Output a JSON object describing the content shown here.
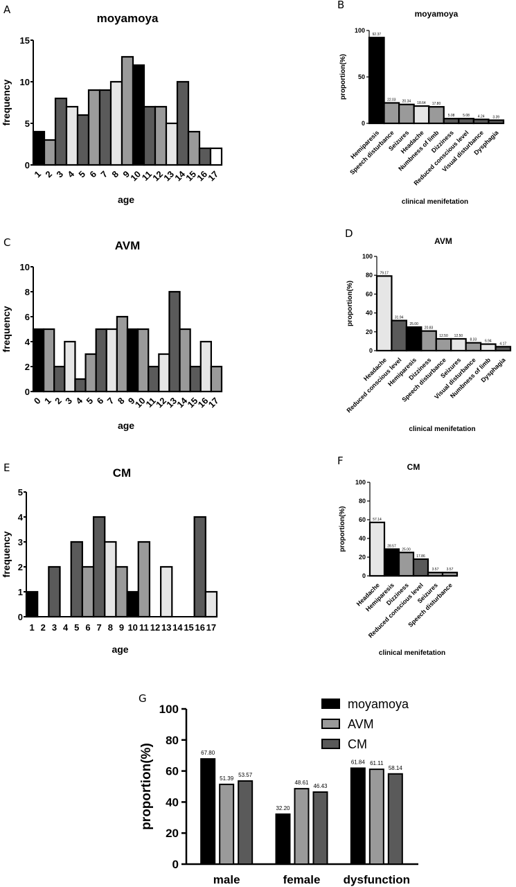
{
  "colors": {
    "black": "#000000",
    "dark_gray": "#5a5a5a",
    "mid_gray": "#9a9a9a",
    "light_gray": "#e6e6e6",
    "white": "#ffffff"
  },
  "panel_letters": [
    "A",
    "B",
    "C",
    "D",
    "E",
    "F",
    "G"
  ],
  "chart_data": [
    {
      "id": "A",
      "type": "bar",
      "title": "moyamoya",
      "xlabel": "age",
      "ylabel": "frequency",
      "ylim": [
        0,
        15
      ],
      "yticks": [
        0,
        5,
        10,
        15
      ],
      "categories": [
        "1",
        "2",
        "3",
        "4",
        "5",
        "6",
        "7",
        "8",
        "9",
        "10",
        "11",
        "12",
        "13",
        "14",
        "15",
        "16",
        "17"
      ],
      "values": [
        4,
        3,
        8,
        7,
        6,
        9,
        9,
        10,
        13,
        12,
        7,
        7,
        5,
        10,
        4,
        2,
        2
      ],
      "fills": [
        "black",
        "mid_gray",
        "dark_gray",
        "light_gray",
        "dark_gray",
        "mid_gray",
        "dark_gray",
        "light_gray",
        "mid_gray",
        "black",
        "dark_gray",
        "mid_gray",
        "light_gray",
        "dark_gray",
        "mid_gray",
        "dark_gray",
        "white"
      ]
    },
    {
      "id": "B",
      "type": "bar",
      "title": "moyamoya",
      "xlabel": "clinical menifetation",
      "ylabel": "proportion(%)",
      "ylim": [
        0,
        100
      ],
      "yticks": [
        0,
        50,
        100
      ],
      "categories": [
        "Hemiparesis",
        "Speech disturbance",
        "Seizures",
        "Headache",
        "Numbness of limb",
        "Dizziness",
        "Reduced conscious level",
        "Visual disturbance",
        "Dysphagia"
      ],
      "values": [
        92.37,
        22.03,
        20.34,
        18.64,
        17.8,
        5.08,
        5.08,
        4.24,
        3.39
      ],
      "data_labels": [
        "92.37",
        "22.03",
        "20.34",
        "18.64",
        "17.80",
        "5.08",
        "5.08",
        "4.24",
        "3.39"
      ],
      "fills": [
        "black",
        "mid_gray",
        "mid_gray",
        "light_gray",
        "mid_gray",
        "dark_gray",
        "dark_gray",
        "dark_gray",
        "dark_gray"
      ]
    },
    {
      "id": "C",
      "type": "bar",
      "title": "AVM",
      "xlabel": "age",
      "ylabel": "frequency",
      "ylim": [
        0,
        10
      ],
      "yticks": [
        0,
        2,
        4,
        6,
        8,
        10
      ],
      "categories": [
        "0",
        "1",
        "2",
        "3",
        "4",
        "5",
        "6",
        "7",
        "8",
        "9",
        "10",
        "11",
        "12",
        "13",
        "14",
        "15",
        "16",
        "17"
      ],
      "values": [
        5,
        5,
        2,
        4,
        1,
        3,
        5,
        5,
        6,
        5,
        5,
        2,
        3,
        8,
        5,
        2,
        4,
        2
      ],
      "fills": [
        "black",
        "mid_gray",
        "dark_gray",
        "light_gray",
        "dark_gray",
        "mid_gray",
        "dark_gray",
        "light_gray",
        "mid_gray",
        "black",
        "mid_gray",
        "dark_gray",
        "light_gray",
        "dark_gray",
        "mid_gray",
        "dark_gray",
        "light_gray",
        "mid_gray"
      ]
    },
    {
      "id": "D",
      "type": "bar",
      "title": "AVM",
      "xlabel": "clinical menifetation",
      "ylabel": "proportion(%)",
      "ylim": [
        0,
        100
      ],
      "yticks": [
        0,
        20,
        40,
        60,
        80,
        100
      ],
      "categories": [
        "Headache",
        "Reduced conscious level",
        "Hemiparesis",
        "Dizziness",
        "Speech disturbance",
        "Seizures",
        "Visual disturbance",
        "Numbness of limb",
        "Dysphagia"
      ],
      "values": [
        79.17,
        31.94,
        25.0,
        20.83,
        12.5,
        12.5,
        8.33,
        6.94,
        4.17
      ],
      "data_labels": [
        "79.17",
        "31.94",
        "25.00",
        "20.83",
        "12.50",
        "12.50",
        "8.33",
        "6.94",
        "4.17"
      ],
      "fills": [
        "light_gray",
        "dark_gray",
        "black",
        "mid_gray",
        "mid_gray",
        "light_gray",
        "mid_gray",
        "light_gray",
        "dark_gray"
      ]
    },
    {
      "id": "E",
      "type": "bar",
      "title": "CM",
      "xlabel": "age",
      "ylabel": "frequency",
      "ylim": [
        0,
        5
      ],
      "yticks": [
        0,
        1,
        2,
        3,
        4,
        5
      ],
      "categories": [
        "1",
        "2",
        "3",
        "4",
        "5",
        "6",
        "7",
        "8",
        "9",
        "10",
        "11",
        "12",
        "13",
        "14",
        "15",
        "16",
        "17"
      ],
      "values": [
        1,
        0,
        2,
        0,
        3,
        2,
        4,
        3,
        2,
        1,
        3,
        0,
        2,
        0,
        0,
        4,
        1
      ],
      "fills": [
        "black",
        "white",
        "dark_gray",
        "white",
        "dark_gray",
        "mid_gray",
        "dark_gray",
        "light_gray",
        "mid_gray",
        "black",
        "mid_gray",
        "white",
        "light_gray",
        "white",
        "white",
        "dark_gray",
        "light_gray"
      ]
    },
    {
      "id": "F",
      "type": "bar",
      "title": "CM",
      "xlabel": "clinical menifetation",
      "ylabel": "proportion(%)",
      "ylim": [
        0,
        100
      ],
      "yticks": [
        0,
        20,
        40,
        60,
        80,
        100
      ],
      "categories": [
        "Headache",
        "Hemiparesis",
        "Dizziness",
        "Reduced conscious level",
        "Seizures",
        "Speech disturbance"
      ],
      "values": [
        57.14,
        28.57,
        25.0,
        17.86,
        3.57,
        3.57
      ],
      "data_labels": [
        "57.14",
        "28.57",
        "25.00",
        "17.86",
        "3.57",
        "3.57"
      ],
      "fills": [
        "light_gray",
        "black",
        "mid_gray",
        "dark_gray",
        "mid_gray",
        "mid_gray"
      ]
    },
    {
      "id": "G",
      "type": "bar",
      "title": "",
      "xlabel": "",
      "ylabel": "proportion(%)",
      "ylim": [
        0,
        100
      ],
      "yticks": [
        0,
        20,
        40,
        60,
        80,
        100
      ],
      "categories": [
        "male",
        "female",
        "dysfunction"
      ],
      "legend_position": "top-right",
      "series": [
        {
          "name": "moyamoya",
          "fill": "black",
          "values": [
            67.8,
            32.2,
            61.84
          ],
          "data_labels": [
            "67.80",
            "32.20",
            "61.84"
          ]
        },
        {
          "name": "AVM",
          "fill": "mid_gray",
          "values": [
            51.39,
            48.61,
            61.11
          ],
          "data_labels": [
            "51.39",
            "48.61",
            "61.11"
          ]
        },
        {
          "name": "CM",
          "fill": "dark_gray",
          "values": [
            53.57,
            46.43,
            58.14
          ],
          "data_labels": [
            "53.57",
            "46.43",
            "58.14"
          ]
        }
      ]
    }
  ]
}
